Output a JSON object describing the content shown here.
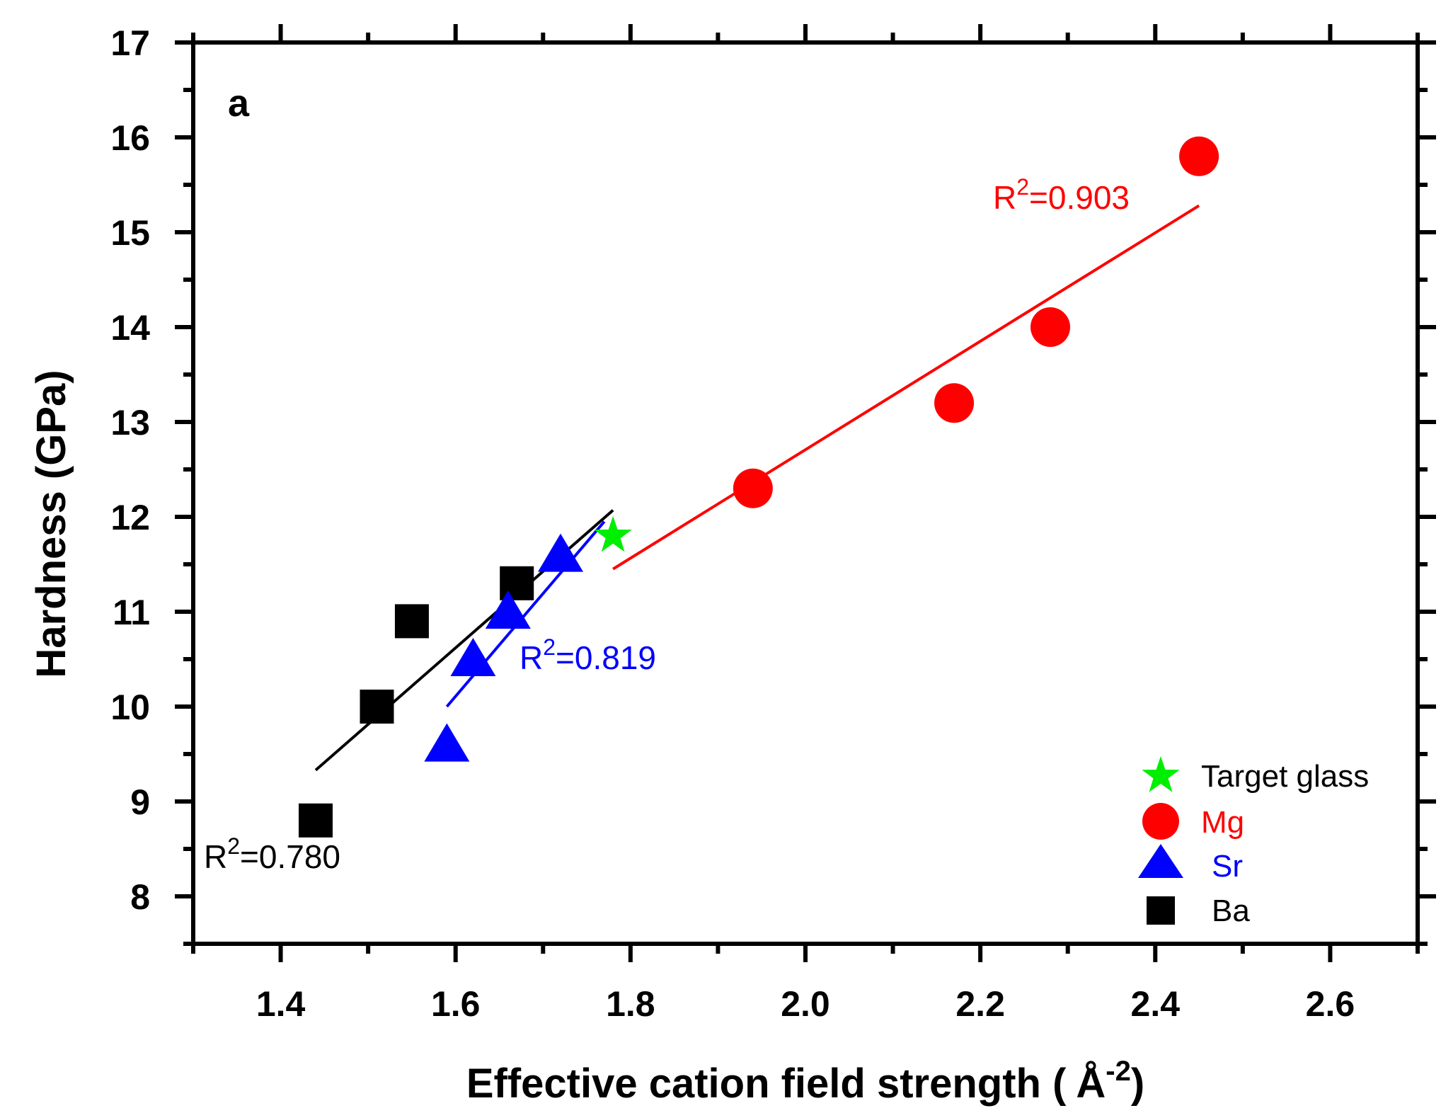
{
  "chart_data": {
    "type": "scatter",
    "panel_label": "a",
    "xlabel": "Effective cation field strength (",
    "xlabel_unit": "Å",
    "xlabel_exp": "-2",
    "xlabel_close": ")",
    "ylabel": "Hardness (GPa)",
    "xlim": [
      1.3,
      2.7
    ],
    "ylim": [
      7.5,
      17
    ],
    "xticks": [
      "1.4",
      "1.6",
      "1.8",
      "2.0",
      "2.2",
      "2.4",
      "2.6"
    ],
    "yticks": [
      "8",
      "9",
      "10",
      "11",
      "12",
      "13",
      "14",
      "15",
      "16",
      "17"
    ],
    "series": [
      {
        "name": "Ba",
        "color": "#000000",
        "marker": "square",
        "x": [
          1.44,
          1.51,
          1.55,
          1.67
        ],
        "y": [
          8.8,
          10.0,
          10.9,
          11.3
        ],
        "fit": {
          "x": [
            1.44,
            1.78
          ],
          "y": [
            9.33,
            12.07
          ]
        },
        "r2_prefix": "R",
        "r2_exp": "2",
        "r2_value": "=0.780"
      },
      {
        "name": "Sr",
        "color": "#0000ff",
        "marker": "triangle",
        "x": [
          1.59,
          1.62,
          1.66,
          1.72
        ],
        "y": [
          9.6,
          10.5,
          11.0,
          11.6
        ],
        "fit": {
          "x": [
            1.59,
            1.77
          ],
          "y": [
            10.0,
            11.95
          ]
        },
        "r2_prefix": "R",
        "r2_exp": "2",
        "r2_value": "=0.819"
      },
      {
        "name": "Mg",
        "color": "#ff0000",
        "marker": "circle",
        "x": [
          1.94,
          2.17,
          2.28,
          2.45
        ],
        "y": [
          12.3,
          13.2,
          14.0,
          15.8
        ],
        "fit": {
          "x": [
            1.78,
            2.45
          ],
          "y": [
            11.45,
            15.28
          ]
        },
        "r2_prefix": "R",
        "r2_exp": "2",
        "r2_value": "=0.903"
      },
      {
        "name": "Target glass",
        "color": "#00ee00",
        "marker": "star",
        "x": [
          1.78
        ],
        "y": [
          11.8
        ]
      }
    ],
    "legend": {
      "position": "bottom-right",
      "entries": [
        "Target glass",
        "Mg",
        "Sr",
        "Ba"
      ]
    }
  }
}
